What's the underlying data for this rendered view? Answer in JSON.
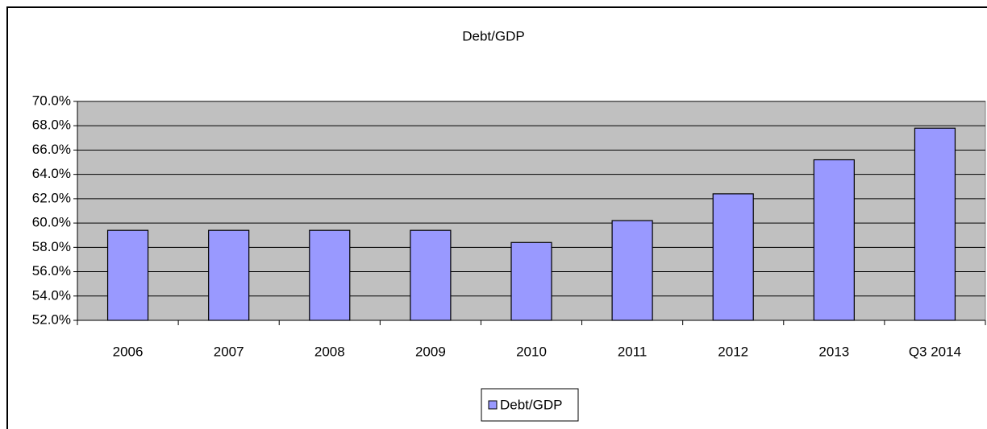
{
  "chart_data": {
    "type": "bar",
    "title": "Debt/GDP",
    "categories": [
      "2006",
      "2007",
      "2008",
      "2009",
      "2010",
      "2011",
      "2012",
      "2013",
      "Q3 2014"
    ],
    "series": [
      {
        "name": "Debt/GDP",
        "color": "#9999ff",
        "values": [
          59.4,
          59.4,
          59.4,
          59.4,
          58.4,
          60.2,
          62.4,
          65.2,
          67.8
        ]
      }
    ],
    "ylim": [
      52,
      70
    ],
    "yticks": [
      {
        "value": 52,
        "label": "52.0%"
      },
      {
        "value": 54,
        "label": "54.0%"
      },
      {
        "value": 56,
        "label": "56.0%"
      },
      {
        "value": 58,
        "label": "58.0%"
      },
      {
        "value": 60,
        "label": "60.0%"
      },
      {
        "value": 62,
        "label": "62.0%"
      },
      {
        "value": 64,
        "label": "64.0%"
      },
      {
        "value": 66,
        "label": "66.0%"
      },
      {
        "value": 68,
        "label": "68.0%"
      },
      {
        "value": 70,
        "label": "70.0%"
      }
    ],
    "grid": true,
    "legend": "bottom"
  }
}
